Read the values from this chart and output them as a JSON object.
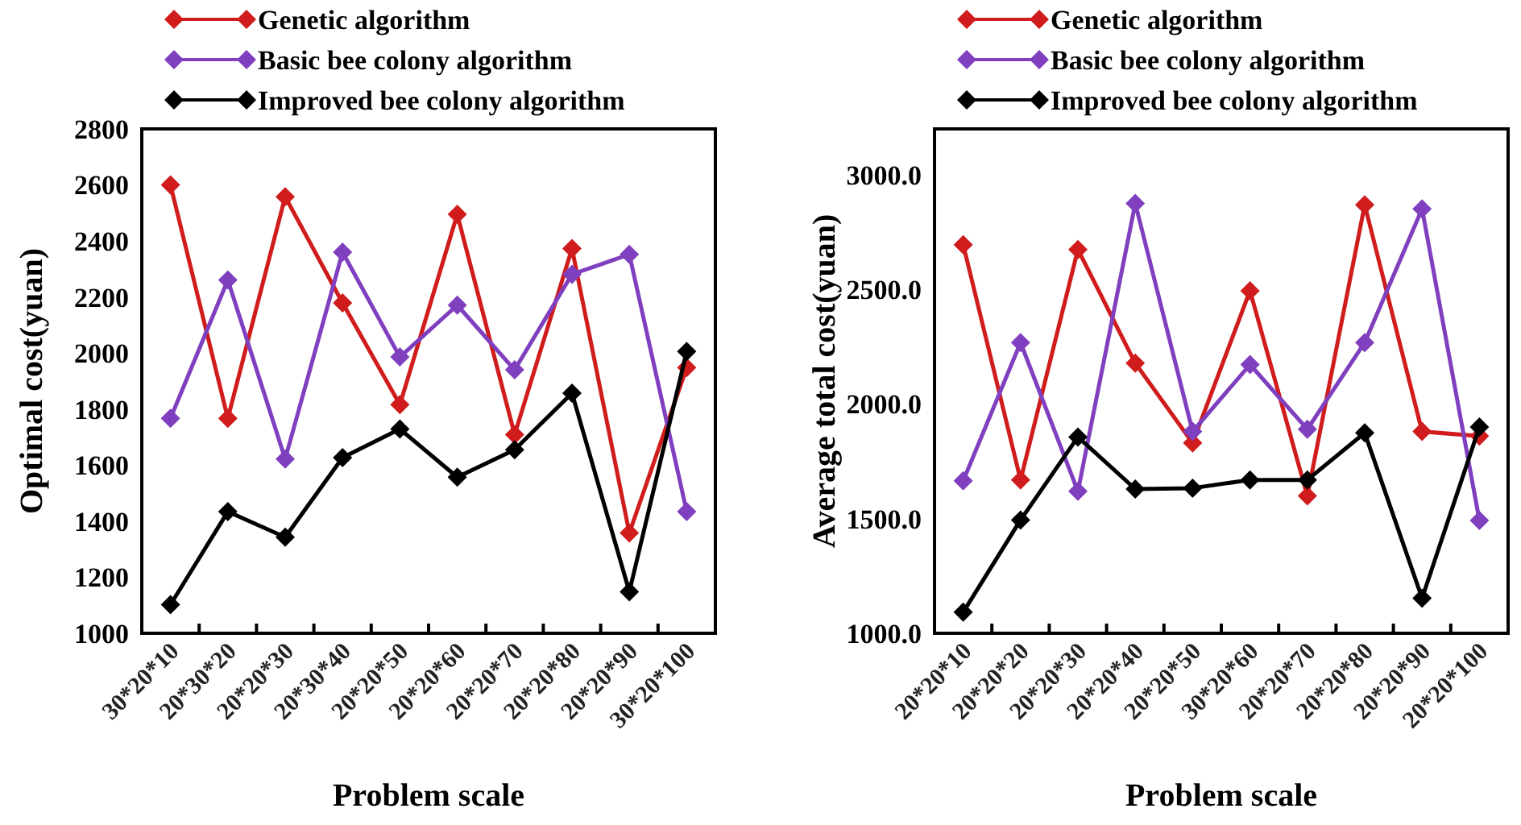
{
  "chart_data": [
    {
      "type": "line",
      "xlabel": "Problem scale",
      "ylabel": "Optimal cost(yuan)",
      "categories": [
        "30*20*10",
        "20*30*20",
        "20*20*30",
        "20*30*40",
        "20*20*50",
        "20*20*60",
        "20*20*70",
        "20*20*80",
        "20*20*90",
        "30*20*100"
      ],
      "series": [
        {
          "name": "Genetic algorithm",
          "color": "#d01c1c",
          "values": [
            2600,
            1767,
            2558,
            2179,
            1816,
            2495,
            1709,
            2373,
            1358,
            1948
          ]
        },
        {
          "name": "Basic bee colony algorithm",
          "color": "#7f3fbf",
          "values": [
            1767,
            2261,
            1622,
            2360,
            1986,
            2171,
            1940,
            2281,
            2352,
            1434
          ]
        },
        {
          "name": "Improved bee colony algorithm",
          "color": "#000000",
          "values": [
            1102,
            1434,
            1343,
            1627,
            1729,
            1557,
            1655,
            1857,
            1148,
            2006
          ]
        }
      ],
      "ylim": [
        1000,
        2800
      ],
      "yticks": [
        1000,
        1200,
        1400,
        1600,
        1800,
        2000,
        2200,
        2400,
        2600,
        2800
      ],
      "grid": false,
      "legend": "top",
      "marker": "diamond",
      "line_style": "solid"
    },
    {
      "type": "line",
      "xlabel": "Problem scale",
      "ylabel": "Average total cost(yuan)",
      "categories": [
        "20*20*10",
        "20*20*20",
        "20*20*30",
        "20*20*40",
        "20*20*50",
        "30*20*60",
        "20*20*70",
        "20*20*80",
        "20*20*90",
        "20*20*100"
      ],
      "series": [
        {
          "name": "Genetic algorithm",
          "color": "#d01c1c",
          "values": [
            2695,
            1669,
            2674,
            2178,
            1830,
            2494,
            1599,
            2869,
            1880,
            1860
          ]
        },
        {
          "name": "Basic bee colony algorithm",
          "color": "#7f3fbf",
          "values": [
            1665,
            2268,
            1619,
            2875,
            1880,
            2172,
            1890,
            2268,
            2851,
            1492
          ]
        },
        {
          "name": "Improved bee colony algorithm",
          "color": "#000000",
          "values": [
            1092,
            1494,
            1856,
            1629,
            1633,
            1669,
            1669,
            1874,
            1153,
            1900
          ]
        }
      ],
      "ylim": [
        1000,
        3200
      ],
      "yticks": [
        {
          "value": 1000,
          "label": "1000.0"
        },
        {
          "value": 1500,
          "label": "1500.0"
        },
        {
          "value": 2000,
          "label": "2000.0"
        },
        {
          "value": 2500,
          "label": "2500.0"
        },
        {
          "value": 3000,
          "label": "3000.0"
        }
      ],
      "grid": false,
      "legend": "top",
      "marker": "diamond",
      "line_style": "solid"
    }
  ]
}
